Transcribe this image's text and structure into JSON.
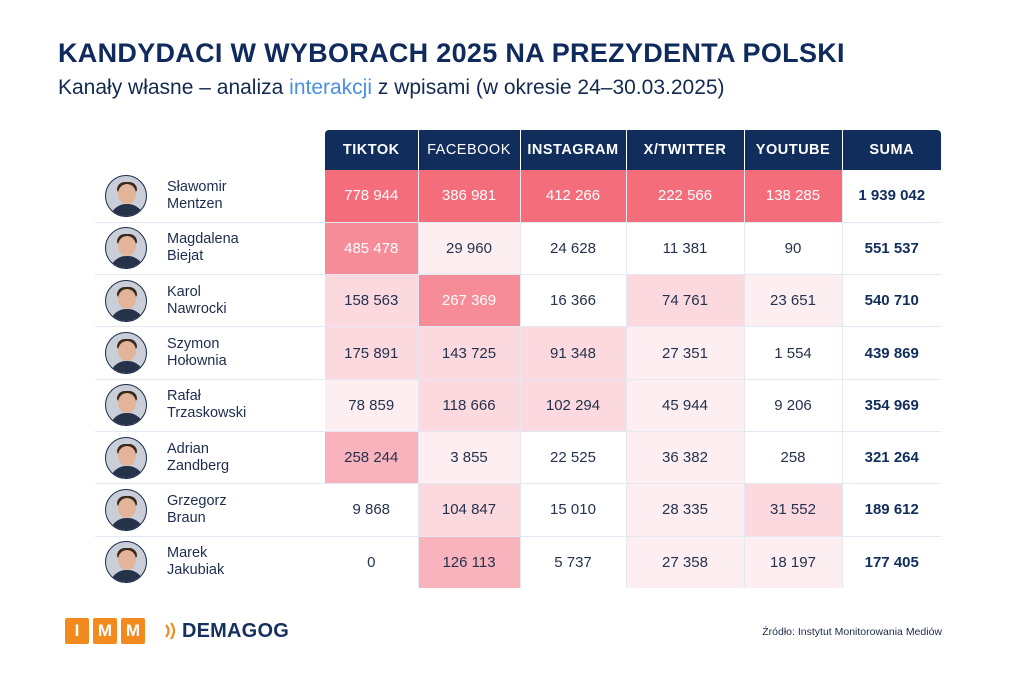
{
  "header": {
    "title": "KANDYDACI W WYBORACH 2025 NA PREZYDENTA POLSKI",
    "subtitle_before": "Kanały własne – analiza ",
    "subtitle_highlight": "interakcji",
    "subtitle_after": " z wpisami (w okresie 24–30.03.2025)"
  },
  "chart_data": {
    "type": "table",
    "title": "KANDYDACI W WYBORACH 2025 NA PREZYDENTA POLSKI",
    "subtitle": "Kanały własne – analiza interakcji z wpisami (w okresie 24–30.03.2025)",
    "columns": [
      "TIKTOK",
      "FACEBOOK",
      "INSTAGRAM",
      "X/TWITTER",
      "YOUTUBE",
      "SUMA"
    ],
    "rows": [
      {
        "first": "Sławomir",
        "last": "Mentzen",
        "values": [
          "778 944",
          "386 981",
          "412 266",
          "222 566",
          "138 285"
        ],
        "sum": "1 939 042",
        "shades": [
          5,
          5,
          5,
          5,
          5
        ]
      },
      {
        "first": "Magdalena",
        "last": "Biejat",
        "values": [
          "485 478",
          "29 960",
          "24 628",
          "11 381",
          "90"
        ],
        "sum": "551 537",
        "shades": [
          4,
          1,
          0,
          0,
          0
        ]
      },
      {
        "first": "Karol",
        "last": "Nawrocki",
        "values": [
          "158 563",
          "267 369",
          "16 366",
          "74 761",
          "23 651"
        ],
        "sum": "540 710",
        "shades": [
          2,
          4,
          0,
          2,
          1
        ]
      },
      {
        "first": "Szymon",
        "last": "Hołownia",
        "values": [
          "175 891",
          "143 725",
          "91 348",
          "27 351",
          "1 554"
        ],
        "sum": "439 869",
        "shades": [
          2,
          2,
          2,
          1,
          0
        ]
      },
      {
        "first": "Rafał",
        "last": "Trzaskowski",
        "values": [
          "78 859",
          "118 666",
          "102 294",
          "45 944",
          "9 206"
        ],
        "sum": "354 969",
        "shades": [
          1,
          2,
          2,
          1,
          0
        ]
      },
      {
        "first": "Adrian",
        "last": "Zandberg",
        "values": [
          "258 244",
          "3 855",
          "22 525",
          "36 382",
          "258"
        ],
        "sum": "321 264",
        "shades": [
          3,
          1,
          0,
          1,
          0
        ]
      },
      {
        "first": "Grzegorz",
        "last": "Braun",
        "values": [
          "9 868",
          "104 847",
          "15 010",
          "28 335",
          "31 552"
        ],
        "sum": "189 612",
        "shades": [
          0,
          2,
          0,
          1,
          2
        ]
      },
      {
        "first": "Marek",
        "last": "Jakubiak",
        "values": [
          "0",
          "126 113",
          "5 737",
          "27 358",
          "18 197"
        ],
        "sum": "177 405",
        "shades": [
          0,
          3,
          0,
          1,
          1
        ]
      }
    ]
  },
  "colors": {
    "header_bg": "#102d5c",
    "shades": [
      "#ffffff",
      "#fdeef1",
      "#fbd9df",
      "#f8b3bc",
      "#f58c98",
      "#f46d7a"
    ]
  },
  "footer": {
    "logo_imm_letters": [
      "I",
      "M",
      "M"
    ],
    "logo_demagog": "DEMAGOG",
    "source": "Źródło: Instytut Monitorowania Mediów"
  }
}
